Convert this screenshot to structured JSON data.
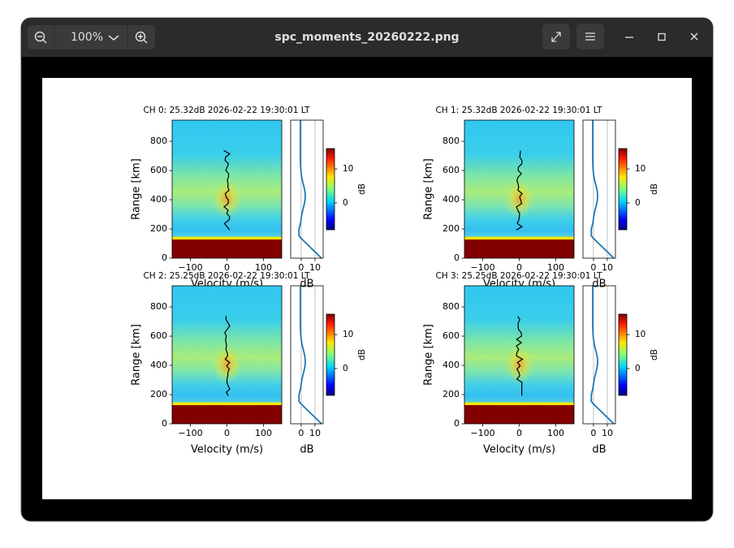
{
  "window": {
    "zoom": "100%",
    "title": "spc_moments_20260222.png"
  },
  "figure": {
    "panels": [
      {
        "title": "CH 0: 25.32dB 2026-02-22 19:30:01 LT",
        "spectrum": {
          "xlabel": "Velocity (m/s)",
          "ylabel": "Range [km]",
          "xlim": [
            -150,
            150
          ],
          "ylim": [
            0,
            945
          ],
          "xticks": [
            {
              "value": -100,
              "label": "−100"
            },
            0,
            100
          ],
          "yticks": [
            0,
            200,
            400,
            600,
            800
          ]
        },
        "profile": {
          "xlabel": "dB",
          "xlim": [
            -7.6,
            15.9
          ],
          "xticks": [
            0,
            10
          ]
        },
        "colorbar": {
          "label": "dB",
          "lim": [
            -7.9,
            16
          ],
          "ticks": [
            0,
            10
          ]
        }
      },
      {
        "title": "CH 1: 25.32dB 2026-02-22 19:30:01 LT",
        "spectrum": {
          "xlabel": "Velocity (m/s)",
          "ylabel": "Range [km]",
          "xlim": [
            -150,
            150
          ],
          "ylim": [
            0,
            945
          ],
          "xticks": [
            {
              "value": -100,
              "label": "−100"
            },
            0,
            100
          ],
          "yticks": [
            0,
            200,
            400,
            600,
            800
          ]
        },
        "profile": {
          "xlabel": "dB",
          "xlim": [
            -7.6,
            15.9
          ],
          "xticks": [
            0,
            10
          ]
        },
        "colorbar": {
          "label": "dB",
          "lim": [
            -7.9,
            16
          ],
          "ticks": [
            0,
            10
          ]
        }
      },
      {
        "title": "CH 2: 25.25dB 2026-02-22 19:30:01 LT",
        "spectrum": {
          "xlabel": "Velocity (m/s)",
          "ylabel": "Range [km]",
          "xlim": [
            -150,
            150
          ],
          "ylim": [
            0,
            945
          ],
          "xticks": [
            {
              "value": -100,
              "label": "−100"
            },
            0,
            100
          ],
          "yticks": [
            0,
            200,
            400,
            600,
            800
          ]
        },
        "profile": {
          "xlabel": "dB",
          "xlim": [
            -7.6,
            15.9
          ],
          "xticks": [
            0,
            10
          ]
        },
        "colorbar": {
          "label": "dB",
          "lim": [
            -7.9,
            16
          ],
          "ticks": [
            0,
            10
          ]
        }
      },
      {
        "title": "CH 3: 25.25dB 2026-02-22 19:30:01 LT",
        "spectrum": {
          "xlabel": "Velocity (m/s)",
          "ylabel": "Range [km]",
          "xlim": [
            -150,
            150
          ],
          "ylim": [
            0,
            945
          ],
          "xticks": [
            {
              "value": -100,
              "label": "−100"
            },
            0,
            100
          ],
          "yticks": [
            0,
            200,
            400,
            600,
            800
          ]
        },
        "profile": {
          "xlabel": "dB",
          "xlim": [
            -7.6,
            15.9
          ],
          "xticks": [
            0,
            10
          ]
        },
        "colorbar": {
          "label": "dB",
          "lim": [
            -7.9,
            16
          ],
          "ticks": [
            0,
            10
          ]
        }
      }
    ]
  }
}
